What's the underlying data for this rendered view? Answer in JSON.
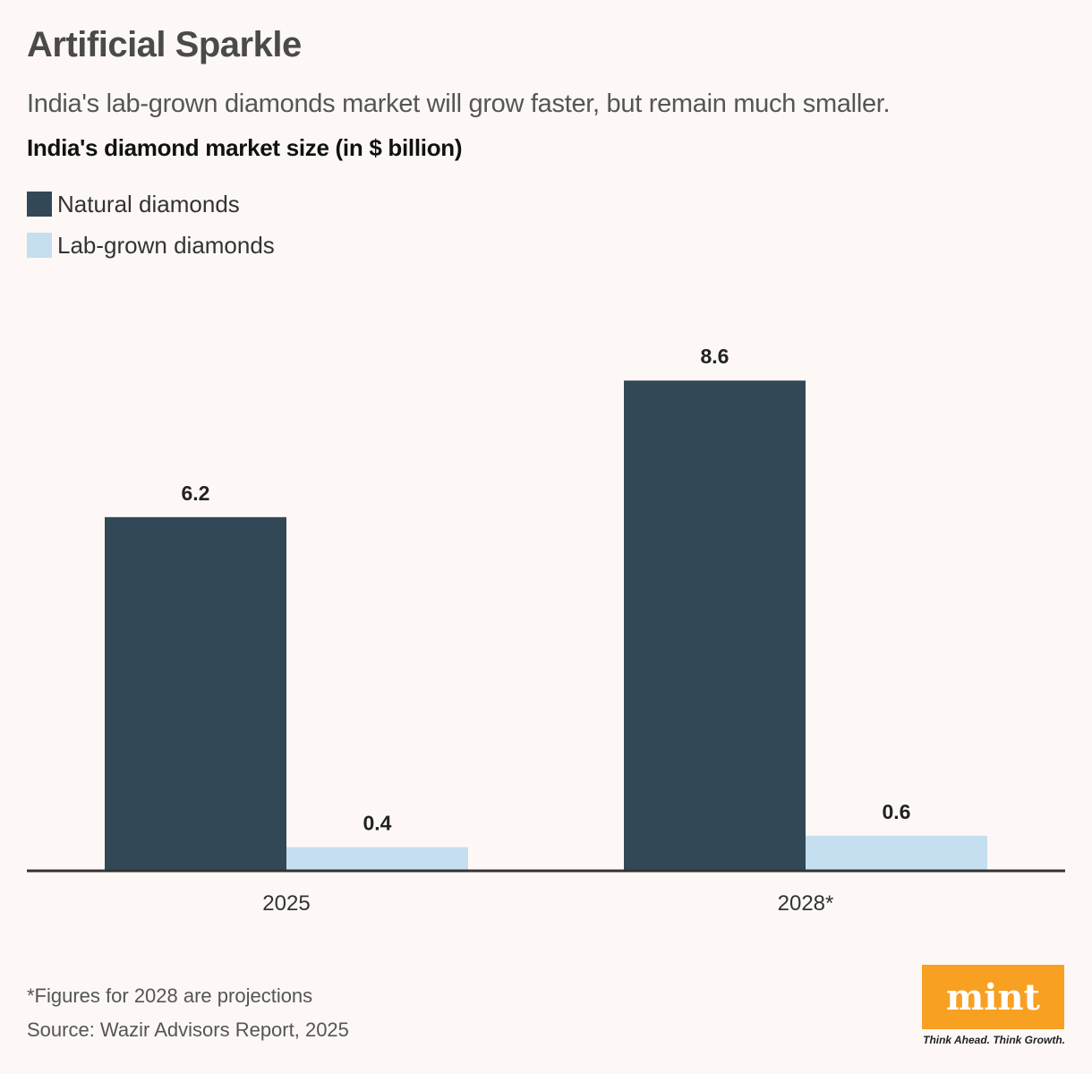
{
  "header": {
    "title": "Artificial Sparkle",
    "subtitle": "India's lab-grown diamonds market will grow faster, but remain much smaller.",
    "chart_heading": "India's diamond market size (in $ billion)"
  },
  "legend": [
    {
      "label": "Natural diamonds",
      "color": "#324856"
    },
    {
      "label": "Lab-grown diamonds",
      "color": "#c5def0"
    }
  ],
  "chart_data": {
    "type": "bar",
    "title": "India's diamond market size (in $ billion)",
    "categories": [
      "2025",
      "2028*"
    ],
    "series": [
      {
        "name": "Natural diamonds",
        "values": [
          6.2,
          8.6
        ],
        "labels": [
          "6.2",
          "8.6"
        ],
        "color": "#324856"
      },
      {
        "name": "Lab-grown diamonds",
        "values": [
          0.4,
          0.6
        ],
        "labels": [
          "0.4",
          "0.6"
        ],
        "color": "#c5def0"
      }
    ],
    "xlabel": "",
    "ylabel": "",
    "ylim": [
      0,
      9.5
    ],
    "grid": false,
    "legend_position": "top-left"
  },
  "footer": {
    "footnote": "*Figures for 2028 are projections",
    "source": "Source: Wazir Advisors Report, 2025",
    "logo_text": "mint",
    "tagline": "Think Ahead. Think Growth.",
    "logo_color": "#f7a021"
  }
}
